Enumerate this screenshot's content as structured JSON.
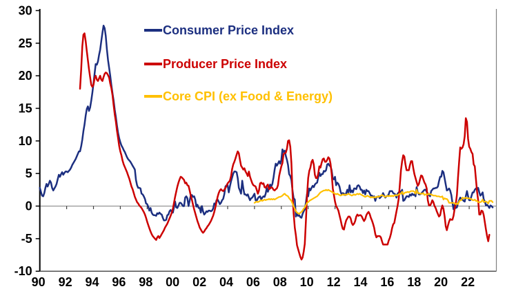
{
  "chart_data": {
    "type": "line",
    "title": "",
    "xlabel": "",
    "ylabel": "",
    "grid": "zero-line-only",
    "legend_position": "inside-top-left",
    "x_axis": {
      "range_years": [
        1990,
        2024
      ],
      "tick_years": [
        1990,
        1992,
        1994,
        1996,
        1998,
        2000,
        2002,
        2004,
        2006,
        2008,
        2010,
        2012,
        2014,
        2016,
        2018,
        2020,
        2022
      ],
      "tick_labels": [
        "90",
        "92",
        "94",
        "96",
        "98",
        "00",
        "02",
        "04",
        "06",
        "08",
        "10",
        "12",
        "14",
        "16",
        "18",
        "20",
        "22"
      ]
    },
    "y_axis": {
      "range": [
        -10,
        30
      ],
      "ticks": [
        30,
        25,
        20,
        15,
        10,
        5,
        0,
        -5,
        -10
      ],
      "tick_labels": [
        "30",
        "25",
        "20",
        "15",
        "10",
        "5",
        "0",
        "-5",
        "-10"
      ]
    },
    "series": [
      {
        "name": "Consumer Price Index",
        "color": "#1c2f80",
        "start_year": 1990,
        "frequency": "monthly",
        "values": [
          2.8,
          2.2,
          1.6,
          1.5,
          2.0,
          2.8,
          3.4,
          3.0,
          3.4,
          3.9,
          3.6,
          2.8,
          2.4,
          2.7,
          3.0,
          3.4,
          4.1,
          4.8,
          4.5,
          4.9,
          5.2,
          4.8,
          5.1,
          5.3,
          5.3,
          5.2,
          5.4,
          5.6,
          5.9,
          6.3,
          6.6,
          6.9,
          7.2,
          7.6,
          8.0,
          8.4,
          8.4,
          9.2,
          10.2,
          11.5,
          12.5,
          13.9,
          14.9,
          15.3,
          14.6,
          15.1,
          16.2,
          17.4,
          18.8,
          20.3,
          21.8,
          21.7,
          22.2,
          23.2,
          24.0,
          25.3,
          26.6,
          27.7,
          27.3,
          26.1,
          24.1,
          22.4,
          21.2,
          20.0,
          18.6,
          17.3,
          16.2,
          14.8,
          13.7,
          12.4,
          11.2,
          10.4,
          9.8,
          9.3,
          9.0,
          8.6,
          8.3,
          7.9,
          7.5,
          7.2,
          7.0,
          6.8,
          6.5,
          6.2,
          5.9,
          5.6,
          4.0,
          3.2,
          2.8,
          2.8,
          2.7,
          1.9,
          1.8,
          1.5,
          1.1,
          0.4,
          0.3,
          -0.1,
          -0.7,
          -0.3,
          -1.0,
          -1.3,
          -1.4,
          -1.4,
          -1.5,
          -1.1,
          -1.2,
          -1.0,
          -1.2,
          -1.3,
          -1.8,
          -2.2,
          -2.2,
          -2.1,
          -1.4,
          -1.3,
          -0.8,
          -0.6,
          -0.9,
          -1.0,
          -0.2,
          0.7,
          -0.2,
          -0.3,
          0.1,
          0.5,
          0.5,
          0.3,
          0.0,
          0.0,
          1.3,
          1.5,
          1.2,
          0.0,
          0.8,
          1.6,
          1.7,
          1.4,
          1.5,
          1.0,
          -0.1,
          0.2,
          -0.3,
          -0.3,
          -1.0,
          0.0,
          -0.8,
          -1.3,
          -1.1,
          -0.8,
          -0.9,
          -0.7,
          -0.7,
          -0.8,
          -0.7,
          -0.4,
          0.4,
          0.2,
          0.9,
          1.0,
          0.7,
          0.3,
          0.5,
          0.9,
          1.1,
          1.8,
          3.0,
          3.2,
          3.2,
          2.1,
          3.0,
          3.8,
          4.4,
          5.0,
          5.3,
          5.3,
          5.2,
          4.3,
          2.8,
          2.4,
          1.9,
          3.9,
          2.7,
          1.8,
          1.8,
          1.6,
          1.8,
          1.3,
          0.9,
          1.2,
          1.3,
          1.6,
          1.9,
          0.9,
          0.8,
          1.2,
          1.4,
          1.5,
          1.0,
          1.3,
          1.5,
          1.4,
          1.9,
          2.8,
          2.2,
          2.7,
          3.3,
          3.0,
          3.4,
          4.4,
          5.6,
          6.5,
          6.2,
          6.5,
          6.9,
          6.5,
          7.1,
          8.7,
          8.3,
          8.5,
          7.7,
          7.1,
          6.3,
          4.9,
          4.6,
          4.0,
          2.4,
          1.2,
          1.0,
          -1.6,
          -1.2,
          -1.5,
          -1.4,
          -1.7,
          -1.8,
          -1.2,
          -0.8,
          -0.5,
          0.6,
          1.9,
          1.5,
          2.7,
          2.4,
          2.8,
          3.1,
          2.9,
          3.3,
          3.5,
          3.6,
          4.4,
          5.1,
          4.6,
          4.9,
          4.9,
          5.4,
          5.3,
          5.5,
          6.4,
          6.5,
          6.2,
          6.1,
          5.5,
          4.2,
          4.1,
          4.5,
          3.2,
          3.6,
          3.4,
          3.0,
          2.2,
          1.8,
          2.0,
          1.9,
          1.7,
          2.0,
          2.5,
          2.0,
          3.2,
          2.1,
          2.4,
          2.1,
          2.7,
          2.7,
          2.6,
          3.1,
          3.2,
          3.0,
          2.5,
          2.5,
          2.0,
          2.4,
          1.8,
          2.5,
          2.3,
          2.3,
          2.0,
          1.6,
          1.6,
          1.4,
          1.5,
          0.8,
          1.4,
          1.4,
          1.5,
          1.2,
          1.4,
          1.6,
          2.0,
          1.6,
          1.3,
          1.5,
          1.6,
          1.8,
          2.3,
          2.3,
          2.3,
          2.0,
          1.9,
          1.8,
          1.3,
          1.9,
          2.1,
          2.3,
          2.1,
          2.5,
          0.8,
          0.9,
          1.2,
          1.5,
          1.5,
          1.4,
          1.8,
          1.6,
          1.9,
          1.7,
          1.8,
          1.5,
          2.9,
          2.1,
          1.8,
          1.8,
          1.9,
          2.1,
          2.3,
          2.5,
          2.5,
          2.2,
          1.9,
          1.7,
          1.5,
          2.3,
          2.5,
          2.7,
          2.7,
          2.8,
          2.8,
          3.0,
          3.8,
          4.5,
          4.5,
          5.4,
          5.2,
          4.3,
          3.3,
          2.4,
          2.5,
          2.7,
          2.4,
          1.7,
          0.5,
          -0.5,
          0.2,
          -0.3,
          -0.2,
          0.4,
          0.9,
          1.3,
          1.1,
          1.0,
          0.8,
          0.7,
          1.5,
          2.3,
          1.5,
          0.9,
          0.9,
          1.5,
          2.1,
          2.1,
          2.5,
          2.7,
          2.5,
          2.8,
          2.1,
          1.6,
          1.8,
          2.1,
          1.0,
          0.7,
          0.1,
          0.2,
          0.0,
          -0.3,
          0.1,
          0.0,
          -0.2
        ]
      },
      {
        "name": "Producer Price Index",
        "color": "#cc0000",
        "start_year": 1993,
        "frequency": "monthly",
        "values": [
          18.0,
          21.0,
          24.5,
          26.3,
          26.5,
          25.3,
          23.8,
          22.4,
          21.0,
          19.8,
          18.6,
          18.3,
          18.6,
          19.6,
          20.0,
          19.4,
          19.2,
          19.6,
          20.0,
          19.4,
          19.2,
          19.8,
          20.3,
          20.5,
          20.4,
          20.1,
          19.7,
          18.8,
          18.1,
          17.0,
          15.5,
          14.1,
          13.0,
          11.6,
          10.4,
          9.2,
          8.4,
          7.8,
          7.0,
          6.4,
          6.0,
          5.6,
          5.2,
          4.7,
          4.2,
          3.6,
          3.0,
          2.6,
          2.0,
          1.4,
          1.0,
          0.6,
          0.4,
          0.1,
          -0.1,
          -0.3,
          -0.6,
          -0.9,
          -1.3,
          -1.8,
          -2.4,
          -2.9,
          -3.4,
          -3.9,
          -4.3,
          -4.6,
          -4.8,
          -5.0,
          -5.2,
          -4.8,
          -4.6,
          -4.9,
          -4.6,
          -4.3,
          -4.0,
          -3.7,
          -3.3,
          -3.0,
          -2.7,
          -2.3,
          -1.9,
          -1.5,
          -1.0,
          -0.4,
          0.5,
          1.4,
          2.2,
          3.0,
          3.6,
          4.1,
          4.5,
          4.4,
          4.2,
          4.0,
          3.5,
          3.6,
          3.2,
          3.1,
          2.4,
          1.6,
          1.0,
          0.2,
          -0.5,
          -1.1,
          -1.7,
          -2.3,
          -2.8,
          -3.3,
          -3.6,
          -3.9,
          -4.1,
          -3.9,
          -3.6,
          -3.4,
          -3.1,
          -2.9,
          -2.6,
          -2.3,
          -1.9,
          -1.5,
          -0.9,
          -0.2,
          0.6,
          1.4,
          2.0,
          2.4,
          2.6,
          2.4,
          2.3,
          2.5,
          2.8,
          3.1,
          3.5,
          3.7,
          3.9,
          4.6,
          5.7,
          6.4,
          6.8,
          7.3,
          7.9,
          8.4,
          8.1,
          7.1,
          6.2,
          5.9,
          5.6,
          5.8,
          5.3,
          5.0,
          4.6,
          5.3,
          4.5,
          4.0,
          3.5,
          3.2,
          3.1,
          3.0,
          2.5,
          1.9,
          2.4,
          3.5,
          3.6,
          3.4,
          3.5,
          2.9,
          2.8,
          3.1,
          3.3,
          2.6,
          2.7,
          2.9,
          2.8,
          2.5,
          2.4,
          2.6,
          2.7,
          3.2,
          4.6,
          5.4,
          6.1,
          6.6,
          8.0,
          8.1,
          8.2,
          8.8,
          10.0,
          10.1,
          9.1,
          6.6,
          2.0,
          -1.1,
          -3.3,
          -4.5,
          -6.0,
          -6.6,
          -7.2,
          -7.8,
          -8.2,
          -7.9,
          -7.0,
          -5.8,
          -2.1,
          1.7,
          4.3,
          5.4,
          5.9,
          6.8,
          7.1,
          6.4,
          4.8,
          4.3,
          4.3,
          5.0,
          6.1,
          5.9,
          6.6,
          7.2,
          7.3,
          6.8,
          6.8,
          7.1,
          7.5,
          7.3,
          6.5,
          5.0,
          2.7,
          1.7,
          0.7,
          0.0,
          -0.3,
          -0.7,
          -1.4,
          -2.1,
          -2.9,
          -3.5,
          -3.6,
          -2.8,
          -2.2,
          -1.9,
          -1.6,
          -1.6,
          -1.9,
          -2.6,
          -2.9,
          -2.7,
          -2.3,
          -1.6,
          -1.3,
          -1.5,
          -1.4,
          -1.4,
          -1.6,
          -2.0,
          -2.3,
          -2.0,
          -1.4,
          -1.1,
          -0.9,
          -1.2,
          -1.8,
          -2.2,
          -2.7,
          -3.3,
          -4.3,
          -4.8,
          -4.6,
          -4.6,
          -4.6,
          -4.8,
          -5.4,
          -5.9,
          -5.9,
          -5.9,
          -5.9,
          -5.9,
          -5.3,
          -4.9,
          -4.3,
          -3.4,
          -2.8,
          -2.6,
          -1.7,
          -0.8,
          0.1,
          1.2,
          3.3,
          5.5,
          6.9,
          7.8,
          7.6,
          6.4,
          5.5,
          5.5,
          5.5,
          6.3,
          6.9,
          6.9,
          5.8,
          4.9,
          4.3,
          3.7,
          3.1,
          3.4,
          4.1,
          4.7,
          4.6,
          4.1,
          3.6,
          3.3,
          2.7,
          0.9,
          0.1,
          0.1,
          0.4,
          0.9,
          0.6,
          0.0,
          -0.3,
          -0.8,
          -1.2,
          -1.6,
          -1.4,
          -0.5,
          0.1,
          -0.4,
          -1.5,
          -3.1,
          -3.7,
          -3.0,
          -2.4,
          -2.0,
          -2.1,
          -2.1,
          -1.5,
          -0.4,
          0.3,
          1.7,
          4.4,
          6.8,
          9.0,
          8.8,
          9.0,
          9.5,
          10.7,
          13.5,
          12.9,
          10.3,
          9.1,
          8.8,
          8.3,
          8.0,
          6.4,
          6.1,
          4.2,
          2.3,
          0.9,
          -1.3,
          -1.3,
          -0.7,
          -0.8,
          -1.4,
          -2.5,
          -3.6,
          -4.6,
          -5.4,
          -4.4
        ]
      },
      {
        "name": "Core CPI (ex Food & Energy)",
        "color": "#ffc000",
        "start_year": 2006,
        "frequency": "monthly",
        "values": [
          0.5,
          0.6,
          0.7,
          0.6,
          0.7,
          0.8,
          0.9,
          0.8,
          0.9,
          1.0,
          0.9,
          1.0,
          1.0,
          1.1,
          1.0,
          1.1,
          1.0,
          1.1,
          1.0,
          1.1,
          1.2,
          1.3,
          1.4,
          1.4,
          1.5,
          1.6,
          1.8,
          1.9,
          1.7,
          1.6,
          1.5,
          1.2,
          1.0,
          0.8,
          0.4,
          0.0,
          -0.4,
          -0.8,
          -1.0,
          -1.1,
          -1.2,
          -1.0,
          -0.9,
          -0.7,
          -0.4,
          -0.2,
          0.2,
          0.5,
          0.6,
          0.8,
          0.9,
          1.0,
          1.1,
          1.2,
          1.3,
          1.4,
          1.5,
          1.7,
          1.9,
          2.1,
          2.2,
          2.3,
          2.4,
          2.4,
          2.5,
          2.4,
          2.5,
          2.4,
          2.3,
          2.2,
          2.1,
          2.0,
          1.9,
          1.8,
          1.9,
          1.8,
          1.7,
          1.6,
          1.7,
          1.8,
          1.7,
          1.8,
          1.7,
          1.8,
          1.9,
          1.8,
          1.7,
          1.6,
          1.7,
          1.8,
          1.7,
          1.8,
          1.9,
          1.8,
          1.9,
          1.8,
          1.7,
          1.6,
          1.5,
          1.4,
          1.5,
          1.6,
          1.5,
          1.4,
          1.3,
          1.4,
          1.3,
          1.4,
          1.3,
          1.4,
          1.5,
          1.4,
          1.5,
          1.6,
          1.7,
          1.6,
          1.5,
          1.4,
          1.5,
          1.6,
          1.5,
          1.6,
          1.5,
          1.6,
          1.5,
          1.6,
          1.7,
          1.6,
          1.7,
          1.8,
          1.9,
          1.9,
          2.2,
          1.8,
          2.0,
          2.1,
          2.1,
          2.2,
          2.1,
          2.2,
          2.3,
          2.3,
          2.3,
          2.2,
          1.9,
          2.5,
          2.0,
          2.0,
          1.9,
          1.9,
          1.9,
          2.0,
          1.7,
          1.8,
          1.8,
          1.8,
          1.9,
          1.8,
          1.8,
          1.7,
          1.6,
          1.6,
          1.6,
          1.5,
          1.5,
          1.5,
          1.4,
          1.4,
          1.5,
          1.0,
          1.2,
          1.1,
          1.1,
          0.9,
          0.5,
          0.5,
          0.5,
          0.5,
          0.5,
          0.4,
          0.3,
          0.4,
          0.3,
          0.7,
          0.9,
          0.9,
          1.3,
          1.2,
          1.2,
          1.3,
          1.2,
          1.2,
          1.2,
          1.1,
          1.1,
          0.9,
          0.9,
          1.0,
          0.8,
          0.8,
          0.6,
          0.6,
          0.6,
          0.7,
          1.0,
          0.6,
          0.7,
          0.7,
          0.6,
          0.4,
          0.8,
          0.8,
          0.8,
          0.6
        ]
      }
    ]
  }
}
